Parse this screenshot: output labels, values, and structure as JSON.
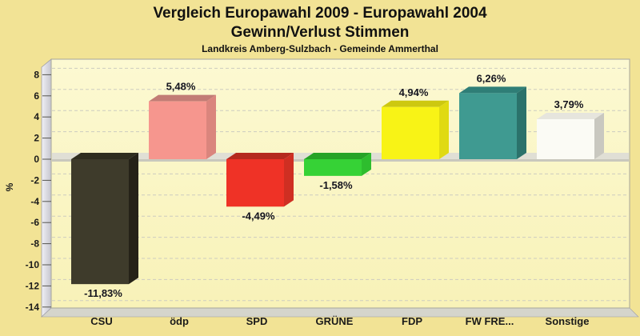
{
  "header": {
    "title_line1": "Vergleich Europawahl 2009 - Europawahl 2004",
    "title_line2": "Gewinn/Verlust Stimmen",
    "subtitle": "Landkreis Amberg-Sulzbach - Gemeinde Ammerthal"
  },
  "chart_data": {
    "type": "bar",
    "title": "Vergleich Europawahl 2009 - Europawahl 2004 Gewinn/Verlust Stimmen",
    "subtitle": "Landkreis Amberg-Sulzbach - Gemeinde Ammerthal",
    "xlabel": "",
    "ylabel": "%",
    "ylim": [
      -14,
      9.5
    ],
    "yticks": [
      8,
      6,
      4,
      2,
      0,
      -2,
      -4,
      -6,
      -8,
      -10,
      -12,
      -14
    ],
    "grid": "dashed",
    "legend": "none",
    "style": "3d-bars",
    "categories": [
      "CSU",
      "ödp",
      "SPD",
      "GRÜNE",
      "FDP",
      "FW FRE...",
      "Sonstige"
    ],
    "values": [
      -11.83,
      5.48,
      -4.49,
      -1.58,
      4.94,
      6.26,
      3.79
    ],
    "value_labels": [
      "-11,83%",
      "5,48%",
      "-4,49%",
      "-1,58%",
      "4,94%",
      "6,26%",
      "3,79%"
    ],
    "bar_colors": [
      {
        "front": "#3E3B2B",
        "top": "#2F2D1F",
        "side": "#252218"
      },
      {
        "front": "#F6968E",
        "top": "#C27C75",
        "side": "#DA857D"
      },
      {
        "front": "#EF3226",
        "top": "#B52A1E",
        "side": "#CF2F22"
      },
      {
        "front": "#36D236",
        "top": "#27A327",
        "side": "#2EBD2E"
      },
      {
        "front": "#F8F316",
        "top": "#CDC810",
        "side": "#E0DA12"
      },
      {
        "front": "#3F9A91",
        "top": "#2F7E77",
        "side": "#2B726B"
      },
      {
        "front": "#FBFBF5",
        "top": "#E6E5DD",
        "side": "#C9C8C0"
      }
    ]
  },
  "colors": {
    "page_bg": "#F2E395",
    "plot_bg_top": "#FCF9D2",
    "plot_bg_bottom": "#F8F2B8",
    "plot_border": "#A6A69D",
    "wall_light": "#F1F1F6",
    "wall_dark": "#C5C5CE",
    "wall_edge": "#9C9CA6",
    "floor": "#D5D5CC",
    "zero_top": "#E0DFD5",
    "zero_front": "#C9C8BD",
    "gridline": "#CDCCC0",
    "tick": "#555550",
    "axis_text": "#1A1A1A",
    "value_text": "#14141E",
    "title_text": "#111111"
  }
}
